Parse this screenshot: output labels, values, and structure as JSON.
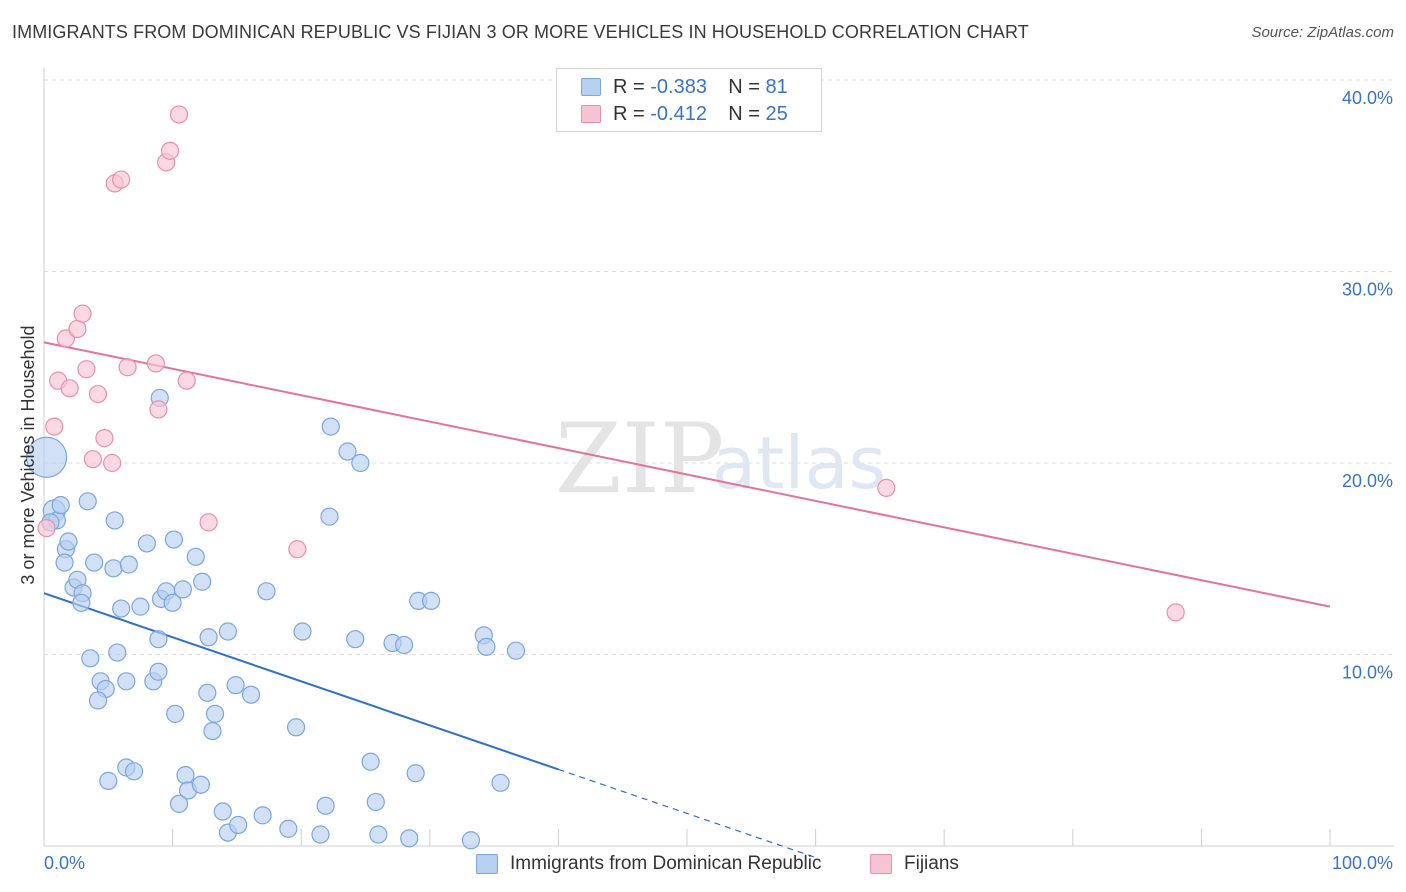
{
  "header": {
    "title": "IMMIGRANTS FROM DOMINICAN REPUBLIC VS FIJIAN 3 OR MORE VEHICLES IN HOUSEHOLD CORRELATION CHART",
    "source": "Source: ZipAtlas.com"
  },
  "watermark": {
    "zip": "ZIP",
    "atlas": "atlas"
  },
  "legend_top": {
    "rows": [
      {
        "r_label": "R =",
        "r_value": "-0.383",
        "n_label": "N =",
        "n_value": "81"
      },
      {
        "r_label": "R =",
        "r_value": "-0.412",
        "n_label": "N =",
        "n_value": "25"
      }
    ]
  },
  "legend_bottom": {
    "items": [
      {
        "label": "Immigrants from Dominican Republic"
      },
      {
        "label": "Fijians"
      }
    ]
  },
  "colors": {
    "blue_fill": "#b8d0f0",
    "blue_stroke": "#7aa7de",
    "blue_line": "#2f6fce",
    "pink_fill": "#f7c4d4",
    "pink_stroke": "#ea8fad",
    "pink_line": "#e4739a",
    "tick_text": "#3b73c7",
    "grid": "#dcdcdc"
  },
  "chart_data": {
    "type": "scatter",
    "title": "IMMIGRANTS FROM DOMINICAN REPUBLIC VS FIJIAN 3 OR MORE VEHICLES IN HOUSEHOLD CORRELATION CHART",
    "xlabel": "",
    "ylabel": "3 or more Vehicles in Household",
    "xlim": [
      0,
      100
    ],
    "ylim": [
      0,
      40
    ],
    "x_tick_labels": [
      "0.0%",
      "100.0%"
    ],
    "y_ticks": [
      10,
      20,
      30,
      40
    ],
    "y_tick_labels": [
      "10.0%",
      "20.0%",
      "30.0%",
      "40.0%"
    ],
    "grid": true,
    "legend_placement": "top-center",
    "series": [
      {
        "name": "Immigrants from Dominican Republic",
        "color": "#b8d0f0",
        "points": [
          [
            0.2,
            20.3
          ],
          [
            0.8,
            17.5
          ],
          [
            1.0,
            17.0
          ],
          [
            1.3,
            17.8
          ],
          [
            3.4,
            18.0
          ],
          [
            5.5,
            17.0
          ],
          [
            1.7,
            15.5
          ],
          [
            1.9,
            15.9
          ],
          [
            1.6,
            14.8
          ],
          [
            3.9,
            14.8
          ],
          [
            2.3,
            13.5
          ],
          [
            2.6,
            13.9
          ],
          [
            3.0,
            13.2
          ],
          [
            2.9,
            12.7
          ],
          [
            5.4,
            14.5
          ],
          [
            6.6,
            14.7
          ],
          [
            8.0,
            15.8
          ],
          [
            10.1,
            16.0
          ],
          [
            11.8,
            15.1
          ],
          [
            12.3,
            13.8
          ],
          [
            9.1,
            12.9
          ],
          [
            9.5,
            13.3
          ],
          [
            6.0,
            12.4
          ],
          [
            7.5,
            12.5
          ],
          [
            10.0,
            12.7
          ],
          [
            10.8,
            13.4
          ],
          [
            8.9,
            10.8
          ],
          [
            12.8,
            10.9
          ],
          [
            14.3,
            11.2
          ],
          [
            17.3,
            13.3
          ],
          [
            20.1,
            11.2
          ],
          [
            22.2,
            17.2
          ],
          [
            22.3,
            21.9
          ],
          [
            23.6,
            20.6
          ],
          [
            24.6,
            20.0
          ],
          [
            9.0,
            23.4
          ],
          [
            3.6,
            9.8
          ],
          [
            5.7,
            10.1
          ],
          [
            4.4,
            8.6
          ],
          [
            4.8,
            8.2
          ],
          [
            4.2,
            7.6
          ],
          [
            6.4,
            8.6
          ],
          [
            8.5,
            8.6
          ],
          [
            8.9,
            9.1
          ],
          [
            12.7,
            8.0
          ],
          [
            14.9,
            8.4
          ],
          [
            16.1,
            7.9
          ],
          [
            10.2,
            6.9
          ],
          [
            13.1,
            6.0
          ],
          [
            13.3,
            6.9
          ],
          [
            19.6,
            6.2
          ],
          [
            24.2,
            10.8
          ],
          [
            27.1,
            10.6
          ],
          [
            28.0,
            10.5
          ],
          [
            29.1,
            12.8
          ],
          [
            30.1,
            12.8
          ],
          [
            34.2,
            11.0
          ],
          [
            34.4,
            10.4
          ],
          [
            36.7,
            10.2
          ],
          [
            5.0,
            3.4
          ],
          [
            6.4,
            4.1
          ],
          [
            7.0,
            3.9
          ],
          [
            11.0,
            3.7
          ],
          [
            11.2,
            2.9
          ],
          [
            12.2,
            3.2
          ],
          [
            10.5,
            2.2
          ],
          [
            13.9,
            1.8
          ],
          [
            14.3,
            0.7
          ],
          [
            15.1,
            1.1
          ],
          [
            17.0,
            1.6
          ],
          [
            19.0,
            0.9
          ],
          [
            21.5,
            0.6
          ],
          [
            21.9,
            2.1
          ],
          [
            25.4,
            4.4
          ],
          [
            25.8,
            2.3
          ],
          [
            26.0,
            0.6
          ],
          [
            28.4,
            0.4
          ],
          [
            28.9,
            3.8
          ],
          [
            33.2,
            0.3
          ],
          [
            35.5,
            3.3
          ],
          [
            0.5,
            16.9
          ]
        ],
        "trend_line": {
          "x": [
            0,
            40
          ],
          "y": [
            13.2,
            4.0
          ],
          "dashed_extension": {
            "x": [
              40,
              60
            ],
            "y": [
              4.0,
              -0.6
            ]
          }
        }
      },
      {
        "name": "Fijians",
        "color": "#f7c4d4",
        "points": [
          [
            0.2,
            16.6
          ],
          [
            0.8,
            21.9
          ],
          [
            1.1,
            24.3
          ],
          [
            1.7,
            26.5
          ],
          [
            2.0,
            23.9
          ],
          [
            2.6,
            27.0
          ],
          [
            3.0,
            27.8
          ],
          [
            3.3,
            24.9
          ],
          [
            3.8,
            20.2
          ],
          [
            4.2,
            23.6
          ],
          [
            4.7,
            21.3
          ],
          [
            5.3,
            20.0
          ],
          [
            5.5,
            34.6
          ],
          [
            6.0,
            34.8
          ],
          [
            6.5,
            25.0
          ],
          [
            8.7,
            25.2
          ],
          [
            8.9,
            22.8
          ],
          [
            9.5,
            35.7
          ],
          [
            9.8,
            36.3
          ],
          [
            10.5,
            38.2
          ],
          [
            11.1,
            24.3
          ],
          [
            12.8,
            16.9
          ],
          [
            19.7,
            15.5
          ],
          [
            65.5,
            18.7
          ],
          [
            88.0,
            12.2
          ]
        ],
        "trend_line": {
          "x": [
            0,
            100
          ],
          "y": [
            26.3,
            12.5
          ]
        }
      }
    ]
  }
}
